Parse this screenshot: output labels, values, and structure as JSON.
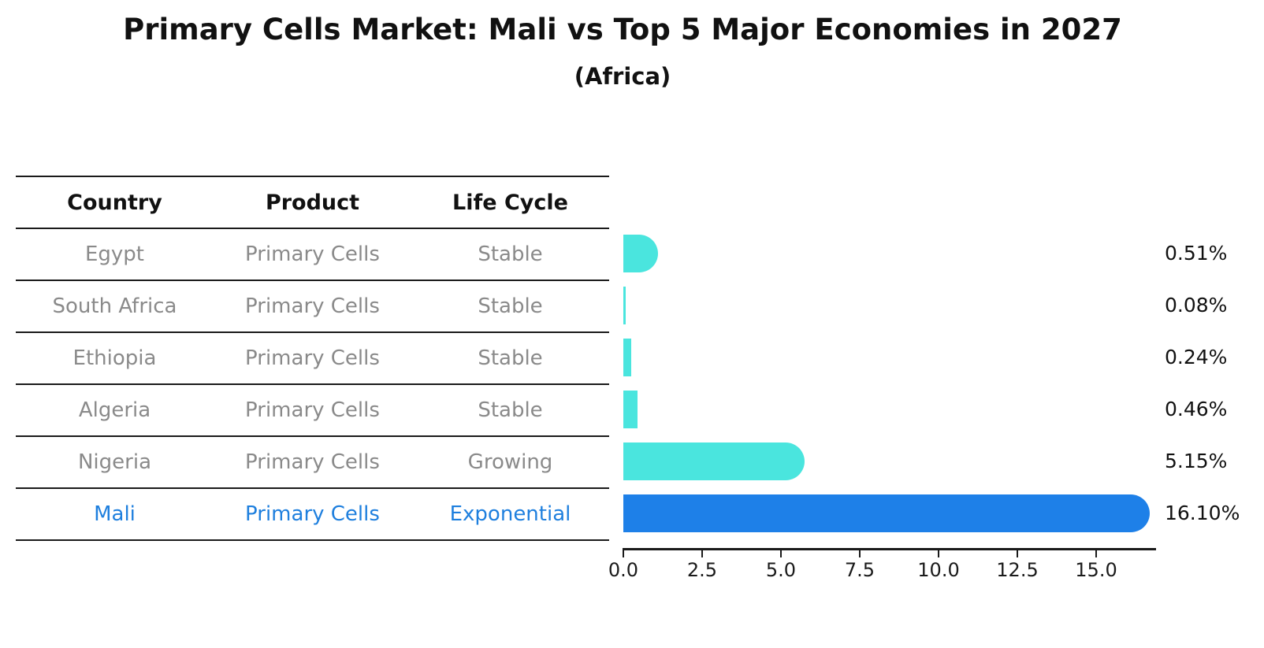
{
  "title": "Primary Cells Market: Mali vs Top 5 Major Economies in 2027",
  "subtitle": "(Africa)",
  "table": {
    "headers": [
      "Country",
      "Product",
      "Life Cycle"
    ],
    "rows": [
      {
        "country": "Egypt",
        "product": "Primary Cells",
        "life_cycle": "Stable",
        "highlight": false
      },
      {
        "country": "South Africa",
        "product": "Primary Cells",
        "life_cycle": "Stable",
        "highlight": false
      },
      {
        "country": "Ethiopia",
        "product": "Primary Cells",
        "life_cycle": "Stable",
        "highlight": false
      },
      {
        "country": "Algeria",
        "product": "Primary Cells",
        "life_cycle": "Stable",
        "highlight": false
      },
      {
        "country": "Nigeria",
        "product": "Primary Cells",
        "life_cycle": "Growing",
        "highlight": false
      },
      {
        "country": "Mali",
        "product": "Primary Cells",
        "life_cycle": "Exponential",
        "highlight": true
      }
    ]
  },
  "chart_data": {
    "type": "bar",
    "orientation": "horizontal",
    "title": "Primary Cells Market: Mali vs Top 5 Major Economies in 2027",
    "subtitle": "(Africa)",
    "categories": [
      "Egypt",
      "South Africa",
      "Ethiopia",
      "Algeria",
      "Nigeria",
      "Mali"
    ],
    "values": [
      0.51,
      0.08,
      0.24,
      0.46,
      5.15,
      16.1
    ],
    "value_labels": [
      "0.51%",
      "0.08%",
      "0.24%",
      "0.46%",
      "5.15%",
      "16.10%"
    ],
    "xlabel": "",
    "ylabel": "",
    "xlim": [
      0,
      16.9
    ],
    "xticks": [
      0.0,
      2.5,
      5.0,
      7.5,
      10.0,
      12.5,
      15.0
    ],
    "xtick_labels": [
      "0.0",
      "2.5",
      "5.0",
      "7.5",
      "10.0",
      "12.5",
      "15.0"
    ],
    "grid": false,
    "legend": null,
    "highlight_index": 5
  },
  "colors": {
    "bar_default": "#4AE5DE",
    "bar_highlight": "#1E80E8",
    "highlight_text": "#1E7FDE",
    "table_text": "#8A8A8A",
    "header_text": "#111111",
    "line": "#1A1A1A"
  }
}
